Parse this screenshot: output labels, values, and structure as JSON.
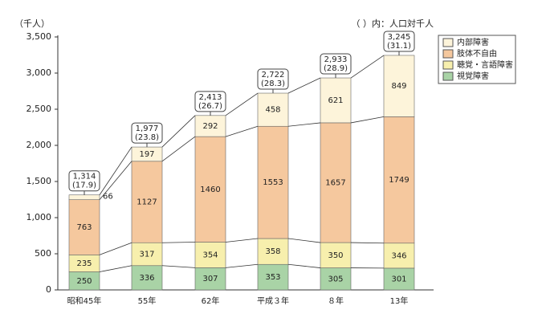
{
  "chart_data": {
    "type": "bar",
    "stacked": true,
    "y_label": "（千人）",
    "note": "（ ）内：人口対千人",
    "categories": [
      "昭和45年",
      "55年",
      "62年",
      "平成３年",
      "８年",
      "13年"
    ],
    "series": [
      {
        "name": "視覚障害",
        "color": "#a9d3a6",
        "values": [
          250,
          336,
          307,
          353,
          305,
          301
        ]
      },
      {
        "name": "聴覚・言語障害",
        "color": "#f7efad",
        "values": [
          235,
          317,
          354,
          358,
          350,
          346
        ]
      },
      {
        "name": "肢体不自由",
        "color": "#f5c89e",
        "values": [
          763,
          1127,
          1460,
          1553,
          1657,
          1749
        ]
      },
      {
        "name": "内部障害",
        "color": "#fdf4da",
        "values": [
          66,
          197,
          292,
          458,
          621,
          849
        ]
      }
    ],
    "totals": {
      "values": [
        1314,
        1977,
        2413,
        2722,
        2933,
        3245
      ],
      "value_labels": [
        "1,314",
        "1,977",
        "2,413",
        "2,722",
        "2,933",
        "3,245"
      ]
    },
    "rates": {
      "values": [
        17.9,
        23.8,
        26.7,
        28.3,
        28.9,
        31.1
      ],
      "value_labels": [
        "(17.9)",
        "(23.8)",
        "(26.7)",
        "(28.3)",
        "(28.9)",
        "(31.1)"
      ]
    },
    "ylim": [
      0,
      3500
    ],
    "yticks": [
      0,
      500,
      {
        "value": 1000,
        "label": "1,000"
      },
      {
        "value": 1500,
        "label": "1,500"
      },
      {
        "value": 2000,
        "label": "2,000"
      },
      {
        "value": 2500,
        "label": "2,500"
      },
      {
        "value": 3000,
        "label": "3,000"
      },
      {
        "value": 3500,
        "label": "3,500"
      }
    ],
    "legend": "top-right"
  }
}
